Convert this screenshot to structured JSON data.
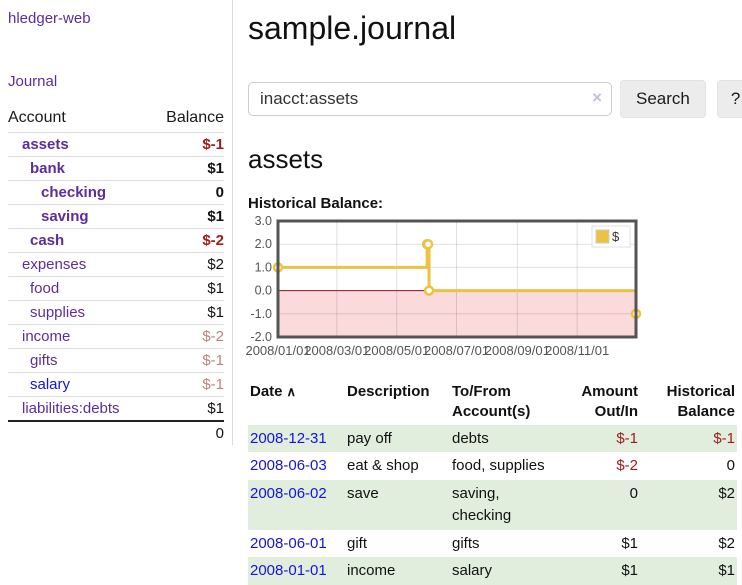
{
  "sidebar": {
    "brand": "hledger-web",
    "journal_link": "Journal",
    "headers": {
      "account": "Account",
      "balance": "Balance"
    },
    "rows": [
      {
        "account": "assets",
        "balance": "$-1",
        "depth": 1,
        "bold": true
      },
      {
        "account": "bank",
        "balance": "$1",
        "depth": 2,
        "bold": true
      },
      {
        "account": "checking",
        "balance": "0",
        "depth": 3,
        "bold": true
      },
      {
        "account": "saving",
        "balance": "$1",
        "depth": 3,
        "bold": true
      },
      {
        "account": "cash",
        "balance": "$-2",
        "depth": 2,
        "bold": true
      },
      {
        "account": "expenses",
        "balance": "$2",
        "depth": 1,
        "bold": false
      },
      {
        "account": "food",
        "balance": "$1",
        "depth": 2,
        "bold": false
      },
      {
        "account": "supplies",
        "balance": "$1",
        "depth": 2,
        "bold": false
      },
      {
        "account": "income",
        "balance": "$-2",
        "depth": 1,
        "bold": false
      },
      {
        "account": "gifts",
        "balance": "$-1",
        "depth": 2,
        "bold": false
      },
      {
        "account": "salary",
        "balance": "$-1",
        "depth": 2,
        "bold": false,
        "link_unvisited": true
      },
      {
        "account": "liabilities:debts",
        "balance": "$1",
        "depth": 1,
        "bold": false
      }
    ],
    "total": "0"
  },
  "main": {
    "title": "sample.journal",
    "search": {
      "value": "inacct:assets",
      "clear_icon": "×",
      "button_label": "Search",
      "help_label": "?"
    },
    "account_heading": "assets",
    "section_heading": "Historical Balance:"
  },
  "chart_data": {
    "type": "line",
    "step": true,
    "title": "Historical Balance",
    "series": [
      {
        "name": "$",
        "color": "#edc240",
        "points": [
          [
            "2008-01-01",
            1
          ],
          [
            "2008-06-01",
            2
          ],
          [
            "2008-06-02",
            2
          ],
          [
            "2008-06-03",
            0
          ],
          [
            "2008-12-31",
            -1
          ]
        ]
      }
    ],
    "xlim": [
      "2008-01-01",
      "2008-12-31"
    ],
    "ylim": [
      -2,
      3
    ],
    "x_tick_labels": [
      "2008/01/01",
      "2008/03/01",
      "2008/05/01",
      "2008/07/01",
      "2008/09/01",
      "2008/11/01"
    ],
    "y_tick_labels": [
      "3.0",
      "2.0",
      "1.0",
      "0.0",
      "-1.0",
      "-2.0"
    ],
    "y_ticks": [
      3,
      2,
      1,
      0,
      -1,
      -2
    ],
    "grid": true,
    "legend_position": "top-right",
    "legend_label": "$",
    "colors": {
      "negative_fill": "#fadada",
      "zero_line": "#8b1a1a",
      "grid_line": "rgba(0,0,0,0.12)",
      "plot_border": "#545454",
      "tick_text": "#545454"
    }
  },
  "register": {
    "headers": {
      "date": "Date",
      "description": "Description",
      "accounts": "To/From Account(s)",
      "amount": "Amount Out/In",
      "balance": "Historical Balance"
    },
    "sort_icon": "∧",
    "rows": [
      {
        "date": "2008-12-31",
        "description": "pay off",
        "accounts": "debts",
        "amount": "$-1",
        "balance": "$-1"
      },
      {
        "date": "2008-06-03",
        "description": "eat & shop",
        "accounts": "food, supplies",
        "amount": "$-2",
        "balance": "0"
      },
      {
        "date": "2008-06-02",
        "description": "save",
        "accounts": "saving, checking",
        "amount": "0",
        "balance": "$2"
      },
      {
        "date": "2008-06-01",
        "description": "gift",
        "accounts": "gifts",
        "amount": "$1",
        "balance": "$2"
      },
      {
        "date": "2008-01-01",
        "description": "income",
        "accounts": "salary",
        "amount": "$1",
        "balance": "$1"
      }
    ]
  }
}
